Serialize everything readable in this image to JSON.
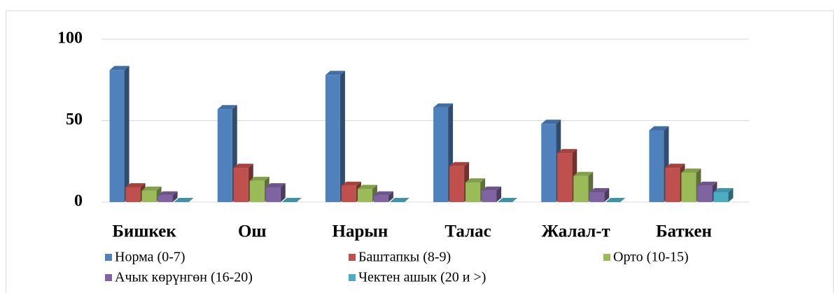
{
  "chart_data": {
    "type": "bar3d",
    "categories": [
      "Бишкек",
      "Ош",
      "Нарын",
      "Талас",
      "Жалал-т",
      "Баткен"
    ],
    "series": [
      {
        "name": "Норма (0-7)",
        "color": "#4f81bd",
        "values": [
          81,
          57,
          78,
          58,
          48,
          44
        ]
      },
      {
        "name": "Баштапкы (8-9)",
        "color": "#c0504d",
        "values": [
          9,
          21,
          10,
          22,
          30,
          21
        ]
      },
      {
        "name": "Орто (10-15)",
        "color": "#9bbb59",
        "values": [
          7,
          13,
          8,
          12,
          16,
          18
        ]
      },
      {
        "name": "Ачык көрүнгөн  (16-20)",
        "color": "#8064a2",
        "values": [
          4,
          9,
          4,
          7,
          6,
          10
        ]
      },
      {
        "name": "Чектен ашык  (20 и >)",
        "color": "#4bacc6",
        "values": [
          0,
          0,
          0,
          0,
          0,
          6
        ]
      }
    ],
    "ylim": [
      0,
      100
    ],
    "yticks": [
      0,
      50,
      100
    ],
    "grid": true
  }
}
